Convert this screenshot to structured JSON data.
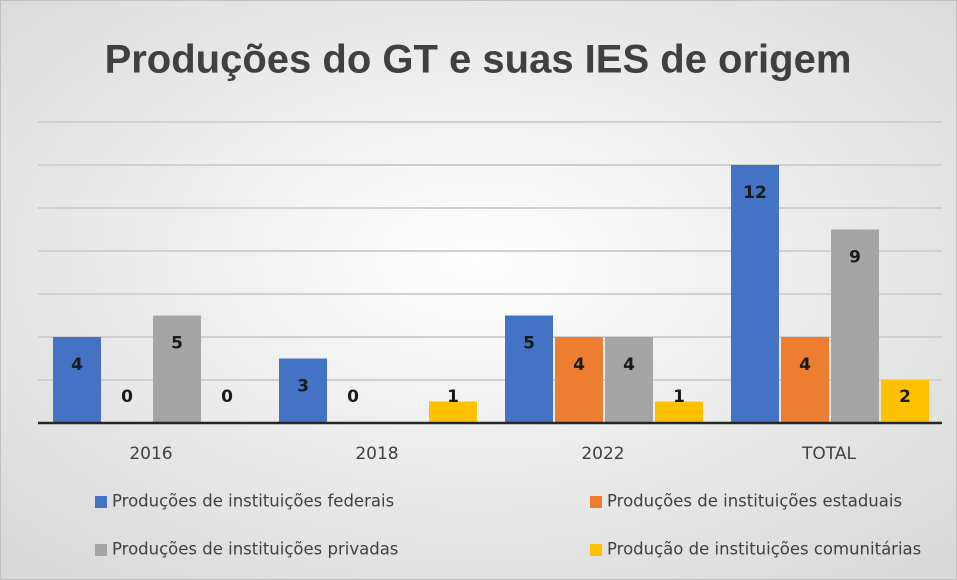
{
  "chart_data": {
    "type": "bar",
    "title": "Produções do GT e suas IES de origem",
    "categories": [
      "2016",
      "2018",
      "2022",
      "TOTAL"
    ],
    "series": [
      {
        "name": "Produções de instituições federais",
        "color": "#4472c4",
        "values": [
          4,
          3,
          5,
          12
        ]
      },
      {
        "name": "Produções de instituições estaduais",
        "color": "#ed7d31",
        "values": [
          0,
          0,
          4,
          4
        ]
      },
      {
        "name": "Produções de instituições privadas",
        "color": "#a5a5a5",
        "values": [
          5,
          null,
          4,
          9
        ]
      },
      {
        "name": "Produção de instituições comunitárias",
        "color": "#ffc000",
        "values": [
          0,
          1,
          1,
          2
        ]
      }
    ],
    "ylim": [
      0,
      14
    ],
    "yticks": [
      0,
      2,
      4,
      6,
      8,
      10,
      12,
      14
    ],
    "grid": true,
    "legend": "bottom"
  }
}
